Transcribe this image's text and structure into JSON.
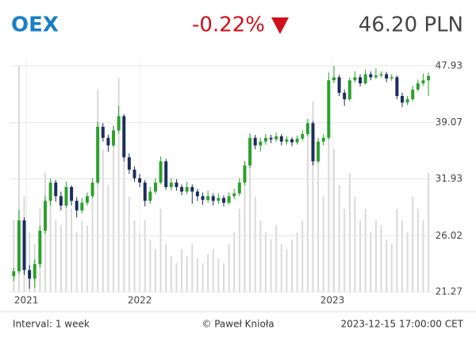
{
  "chart_data": {
    "type": "candlestick",
    "title": "OEX",
    "change": "-0.22%",
    "price": "46.20 PLN",
    "footer_left": "Interval: 1 week",
    "footer_center": "© Paweł Knioła",
    "footer_right": "2023-12-15 17:00:00 CET",
    "log_scale": true,
    "grid": true,
    "up_color": "#2ca02c",
    "down_color": "#1c2c5c",
    "volume_color": "#d9d9d9",
    "ylim": [
      21.27,
      47.93
    ],
    "yticks": [
      21.27,
      26.02,
      31.93,
      39.07,
      47.93
    ],
    "xlim": [
      -0.8,
      80.2
    ],
    "xticks": [
      {
        "value": 2.4,
        "label": "2021"
      },
      {
        "value": 24,
        "label": "2022"
      },
      {
        "value": 60.7,
        "label": "2023"
      }
    ],
    "ohlc": [
      [
        22.5,
        23.2,
        22.1,
        22.9
      ],
      [
        22.9,
        28.6,
        22.7,
        27.5
      ],
      [
        27.5,
        27.8,
        22.6,
        23.0
      ],
      [
        23.0,
        23.4,
        21.5,
        22.3
      ],
      [
        22.3,
        23.9,
        21.6,
        23.5
      ],
      [
        23.5,
        27.0,
        23.2,
        26.5
      ],
      [
        26.5,
        30.0,
        26.2,
        29.5
      ],
      [
        29.5,
        32.0,
        29.0,
        31.5
      ],
      [
        31.5,
        31.8,
        29.4,
        30.0
      ],
      [
        30.0,
        30.5,
        28.5,
        29.0
      ],
      [
        29.0,
        31.6,
        28.8,
        31.0
      ],
      [
        31.0,
        31.2,
        29.0,
        29.5
      ],
      [
        29.5,
        29.9,
        27.8,
        28.5
      ],
      [
        28.5,
        29.8,
        28.2,
        29.3
      ],
      [
        29.3,
        30.4,
        29.0,
        30.0
      ],
      [
        30.0,
        32.0,
        29.8,
        31.5
      ],
      [
        31.5,
        39.2,
        31.3,
        38.5
      ],
      [
        38.5,
        39.0,
        36.5,
        37.0
      ],
      [
        37.0,
        37.4,
        35.2,
        36.0
      ],
      [
        36.0,
        38.6,
        35.8,
        38.0
      ],
      [
        38.0,
        41.5,
        37.6,
        40.0
      ],
      [
        40.0,
        40.3,
        34.0,
        34.5
      ],
      [
        34.5,
        35.0,
        32.5,
        33.0
      ],
      [
        33.0,
        33.4,
        31.6,
        32.0
      ],
      [
        32.0,
        32.5,
        31.0,
        31.5
      ],
      [
        31.5,
        31.8,
        28.9,
        29.5
      ],
      [
        29.5,
        31.0,
        29.2,
        30.5
      ],
      [
        30.5,
        32.0,
        30.2,
        31.5
      ],
      [
        31.5,
        34.6,
        31.3,
        34.0
      ],
      [
        34.0,
        34.3,
        30.7,
        31.0
      ],
      [
        31.0,
        32.0,
        30.6,
        31.5
      ],
      [
        31.5,
        31.9,
        30.6,
        31.0
      ],
      [
        31.0,
        31.3,
        30.1,
        30.5
      ],
      [
        30.5,
        31.6,
        30.2,
        31.0
      ],
      [
        31.0,
        31.3,
        29.2,
        30.5
      ],
      [
        30.5,
        30.8,
        29.5,
        30.0
      ],
      [
        30.0,
        30.4,
        29.1,
        29.6
      ],
      [
        29.6,
        30.6,
        29.3,
        30.0
      ],
      [
        30.0,
        30.3,
        29.0,
        29.5
      ],
      [
        29.5,
        30.3,
        29.2,
        29.8
      ],
      [
        29.8,
        30.1,
        28.9,
        29.3
      ],
      [
        29.3,
        30.4,
        29.1,
        30.0
      ],
      [
        30.0,
        30.8,
        29.7,
        30.3
      ],
      [
        30.3,
        32.0,
        30.0,
        31.5
      ],
      [
        31.5,
        34.0,
        31.2,
        33.5
      ],
      [
        33.5,
        37.6,
        33.2,
        37.0
      ],
      [
        37.0,
        37.4,
        35.5,
        36.0
      ],
      [
        36.0,
        37.0,
        35.2,
        36.5
      ],
      [
        36.5,
        37.5,
        36.1,
        37.0
      ],
      [
        37.0,
        37.4,
        36.3,
        36.8
      ],
      [
        36.8,
        37.7,
        36.5,
        37.2
      ],
      [
        37.2,
        37.5,
        36.0,
        36.5
      ],
      [
        36.5,
        37.2,
        36.1,
        36.8
      ],
      [
        36.8,
        37.1,
        35.9,
        36.4
      ],
      [
        36.4,
        37.3,
        36.1,
        36.9
      ],
      [
        36.9,
        38.0,
        36.6,
        37.5
      ],
      [
        37.5,
        39.6,
        37.2,
        39.0
      ],
      [
        39.0,
        39.3,
        33.5,
        34.0
      ],
      [
        34.0,
        37.0,
        33.8,
        36.5
      ],
      [
        36.5,
        37.5,
        36.0,
        37.0
      ],
      [
        37.0,
        46.8,
        36.8,
        45.5
      ],
      [
        45.5,
        47.9,
        45.0,
        46.0
      ],
      [
        46.0,
        46.4,
        43.0,
        43.5
      ],
      [
        43.5,
        44.0,
        41.5,
        42.5
      ],
      [
        42.5,
        46.0,
        42.2,
        45.5
      ],
      [
        45.5,
        47.0,
        45.1,
        46.0
      ],
      [
        46.0,
        46.5,
        44.5,
        45.0
      ],
      [
        45.0,
        47.3,
        44.8,
        46.5
      ],
      [
        46.5,
        47.0,
        45.5,
        46.0
      ],
      [
        46.0,
        47.5,
        45.7,
        46.3
      ],
      [
        46.3,
        47.0,
        46.0,
        46.5
      ],
      [
        46.5,
        46.9,
        45.2,
        45.8
      ],
      [
        45.8,
        46.5,
        45.4,
        46.0
      ],
      [
        46.0,
        46.3,
        42.5,
        43.0
      ],
      [
        43.0,
        43.5,
        41.3,
        42.0
      ],
      [
        42.0,
        43.0,
        41.6,
        42.5
      ],
      [
        42.5,
        44.6,
        42.2,
        44.0
      ],
      [
        44.0,
        45.6,
        43.7,
        45.0
      ],
      [
        45.0,
        46.6,
        44.6,
        45.5
      ],
      [
        45.5,
        46.8,
        43.0,
        46.2
      ]
    ],
    "volume": [
      30,
      95,
      40,
      25,
      20,
      35,
      50,
      45,
      30,
      28,
      40,
      35,
      25,
      30,
      28,
      40,
      85,
      60,
      45,
      70,
      90,
      55,
      40,
      30,
      25,
      30,
      22,
      18,
      35,
      20,
      15,
      12,
      18,
      15,
      20,
      14,
      12,
      16,
      18,
      14,
      12,
      20,
      25,
      35,
      55,
      60,
      40,
      30,
      25,
      22,
      28,
      20,
      18,
      22,
      25,
      30,
      70,
      80,
      55,
      40,
      85,
      60,
      45,
      35,
      50,
      40,
      30,
      35,
      25,
      30,
      28,
      22,
      20,
      35,
      30,
      25,
      40,
      35,
      30,
      50
    ]
  }
}
